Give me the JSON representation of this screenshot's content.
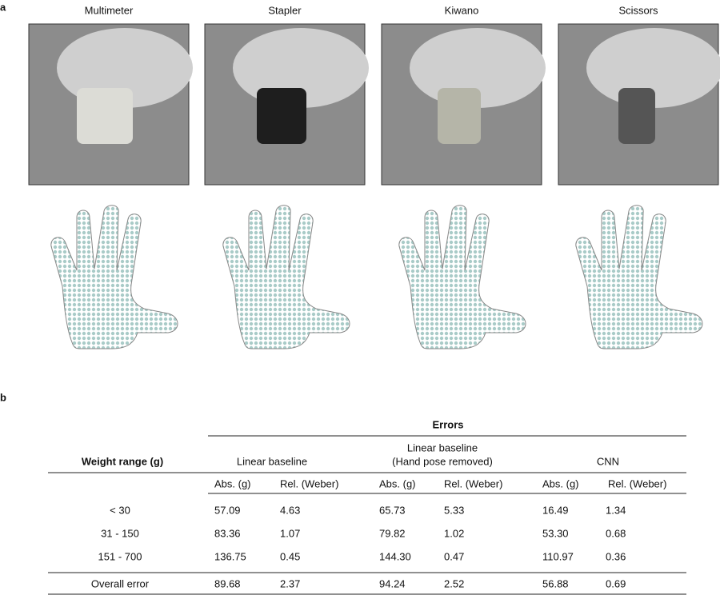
{
  "panel_a": {
    "label": "a",
    "items": [
      "Multimeter",
      "Stapler",
      "Kiwano",
      "Scissors"
    ]
  },
  "panel_b": {
    "label": "b",
    "table": {
      "group_header": "Errors",
      "row_header": "Weight range  (g)",
      "columns": [
        [
          "Linear baseline"
        ],
        [
          "Linear baseline",
          "(Hand pose removed)"
        ],
        [
          "CNN"
        ]
      ],
      "subheaders": [
        "Abs. (g)",
        "Rel. (Weber)"
      ],
      "rows": [
        [
          "< 30",
          "57.09",
          "4.63",
          "65.73",
          "5.33",
          "16.49",
          "1.34"
        ],
        [
          "31 - 150",
          "83.36",
          "1.07",
          "79.82",
          "1.02",
          "53.30",
          "0.68"
        ],
        [
          "151 - 700",
          "136.75",
          "0.45",
          "144.30",
          "0.47",
          "110.97",
          "0.36"
        ],
        [
          "Overall error",
          "89.68",
          "2.37",
          "94.24",
          "2.52",
          "56.88",
          "0.69"
        ]
      ]
    }
  }
}
